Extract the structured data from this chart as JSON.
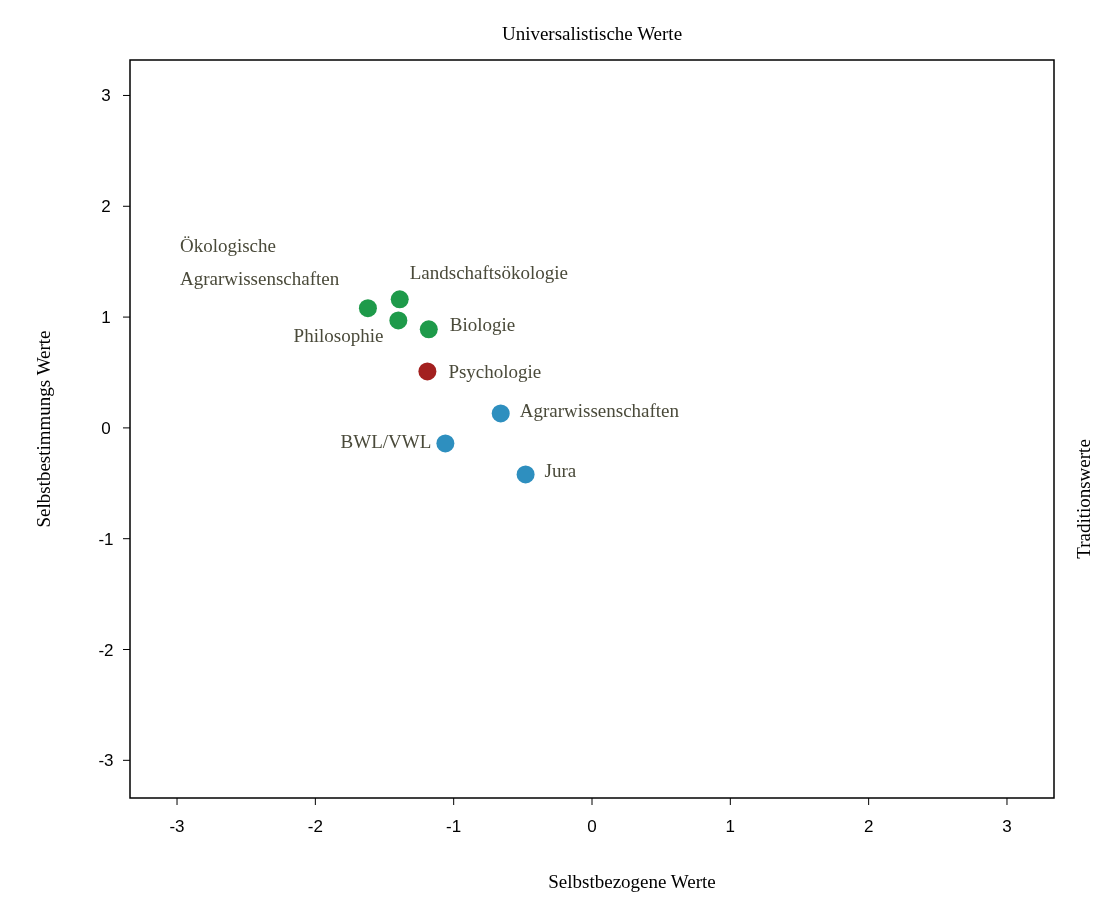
{
  "chart_data": {
    "type": "scatter",
    "xlabel": "Selbstbezogene Werte",
    "ylabel": "Selbstbestimmungs Werte",
    "x2label": "Universalistische Werte",
    "y2label": "Traditionswerte",
    "xlim": [
      -3.34,
      3.34
    ],
    "ylim": [
      -3.34,
      3.32
    ],
    "xticks": [
      -3,
      -2,
      -1,
      0,
      1,
      2,
      3
    ],
    "yticks": [
      -3,
      -2,
      -1,
      0,
      1,
      2,
      3
    ],
    "grid": false,
    "marker": "circle",
    "series": [
      {
        "name": "Ökologische Agrarwissenschaften",
        "color": "#1e9a4a",
        "x": [
          -1.62
        ],
        "values": [
          1.08
        ]
      },
      {
        "name": "Landschaftsökologie",
        "color": "#1e9a4a",
        "x": [
          -1.39
        ],
        "values": [
          1.16
        ]
      },
      {
        "name": "Philosophie",
        "color": "#1e9a4a",
        "x": [
          -1.4
        ],
        "values": [
          0.97
        ]
      },
      {
        "name": "Biologie",
        "color": "#1e9a4a",
        "x": [
          -1.18
        ],
        "values": [
          0.89
        ]
      },
      {
        "name": "Psychologie",
        "color": "#a3201f",
        "x": [
          -1.19
        ],
        "values": [
          0.51
        ]
      },
      {
        "name": "Agrarwissenschaften",
        "color": "#2e8fbf",
        "x": [
          -0.66
        ],
        "values": [
          0.13
        ]
      },
      {
        "name": "BWL/VWL",
        "color": "#2e8fbf",
        "x": [
          -1.06
        ],
        "values": [
          -0.14
        ]
      },
      {
        "name": "Jura",
        "color": "#2e8fbf",
        "x": [
          -0.48
        ],
        "values": [
          -0.42
        ]
      }
    ]
  }
}
